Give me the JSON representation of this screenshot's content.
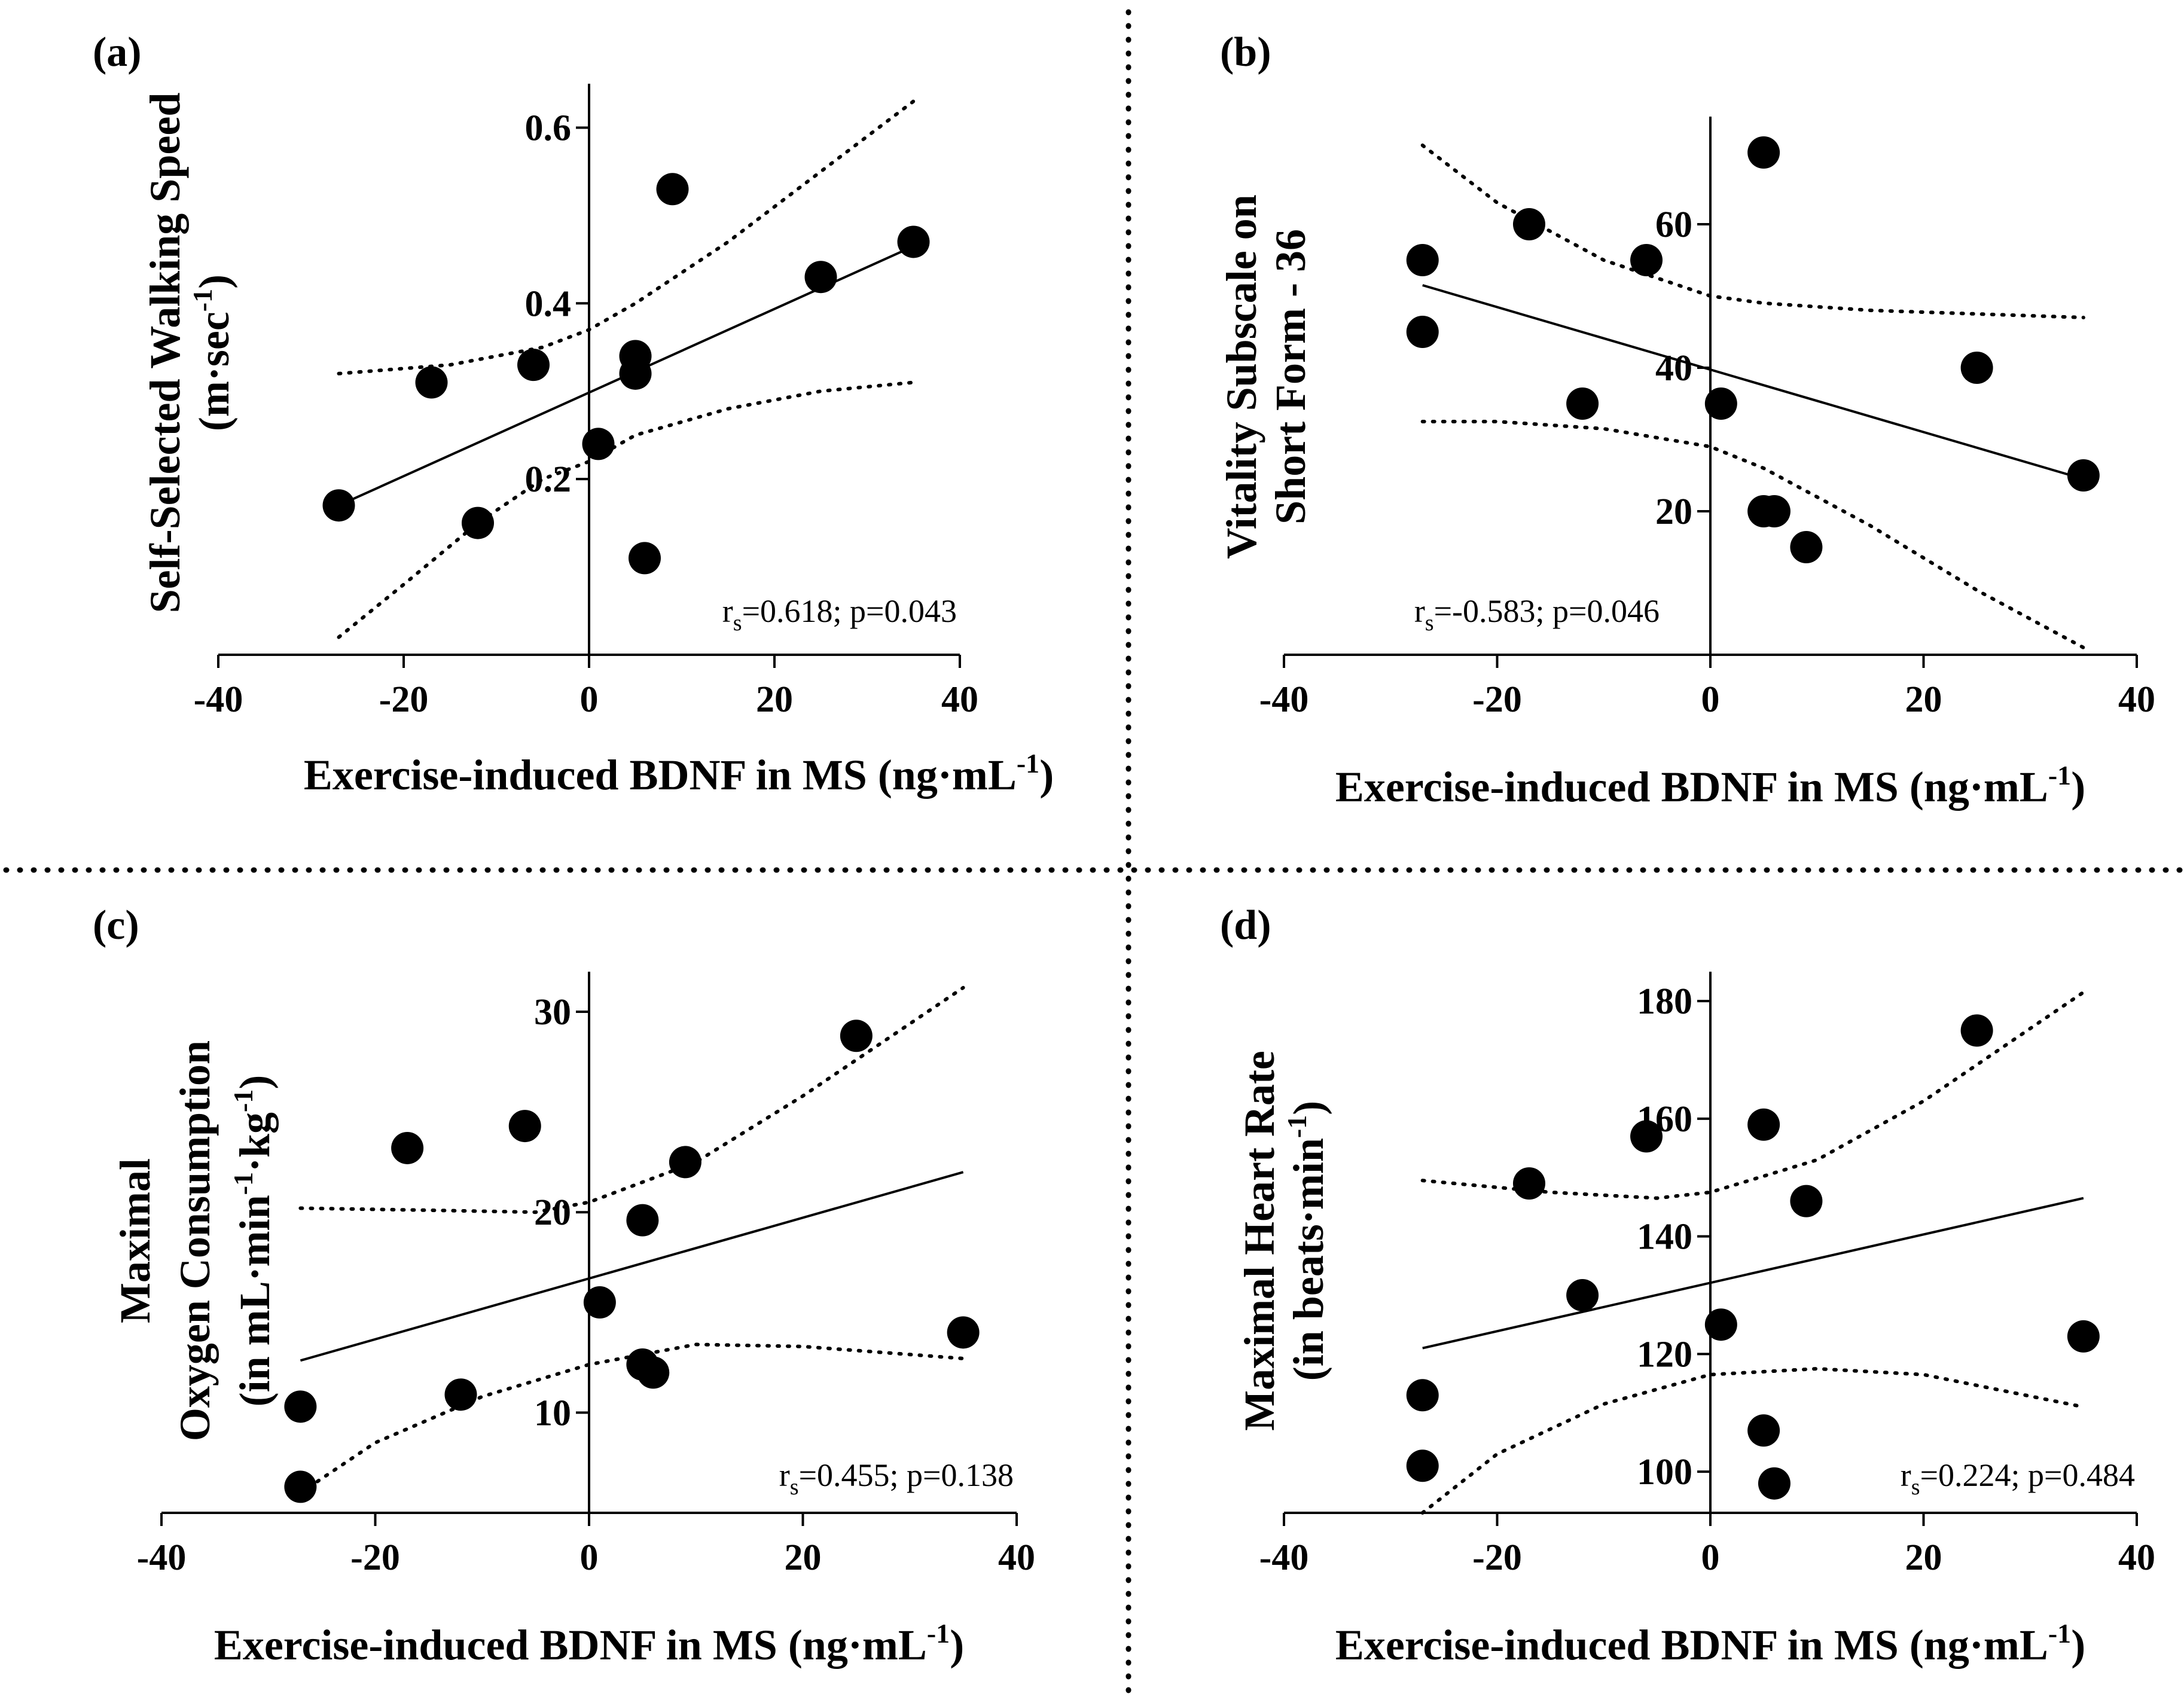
{
  "chart_data": [
    {
      "id": "a",
      "type": "scatter",
      "panel_label": "(a)",
      "title": "",
      "xlabel": "Exercise-induced BDNF in MS (ng·mL",
      "xlabel_sup": "-1",
      "xlabel_end": ")",
      "ylabel_lines": [
        "Self-Selected Walking Speed",
        "(m·sec",
        ")"
      ],
      "ylabel_sup": "-1",
      "xlim": [
        -40,
        40
      ],
      "ylim": [
        0.0,
        0.65
      ],
      "xticks": [
        -40,
        -20,
        0,
        20,
        40
      ],
      "xtick_labels": [
        "-40",
        "-20",
        "0",
        "20",
        "40"
      ],
      "yticks": [
        0.2,
        0.4,
        0.6
      ],
      "ytick_labels": [
        "0.2",
        "0.4",
        "0.6"
      ],
      "points": [
        {
          "x": -27,
          "y": 0.17
        },
        {
          "x": -17,
          "y": 0.31
        },
        {
          "x": -12,
          "y": 0.15
        },
        {
          "x": -6,
          "y": 0.33
        },
        {
          "x": 1,
          "y": 0.24
        },
        {
          "x": 5,
          "y": 0.34
        },
        {
          "x": 5,
          "y": 0.32
        },
        {
          "x": 6,
          "y": 0.11
        },
        {
          "x": 9,
          "y": 0.53
        },
        {
          "x": 25,
          "y": 0.43
        },
        {
          "x": 35,
          "y": 0.47
        }
      ],
      "fit_line": [
        [
          -27,
          0.17
        ],
        [
          35,
          0.465
        ]
      ],
      "ci_upper": [
        [
          -27,
          0.32
        ],
        [
          -15,
          0.33
        ],
        [
          -5,
          0.35
        ],
        [
          0,
          0.37
        ],
        [
          5,
          0.4
        ],
        [
          15,
          0.47
        ],
        [
          25,
          0.55
        ],
        [
          35,
          0.63
        ]
      ],
      "ci_lower": [
        [
          -27,
          0.02
        ],
        [
          -20,
          0.08
        ],
        [
          -12,
          0.15
        ],
        [
          -5,
          0.2
        ],
        [
          0,
          0.22
        ],
        [
          5,
          0.25
        ],
        [
          15,
          0.28
        ],
        [
          25,
          0.3
        ],
        [
          35,
          0.31
        ]
      ],
      "stat_prefix": "r",
      "stat_sub": "s",
      "stat_rest": "=0.618; p=0.043"
    },
    {
      "id": "b",
      "type": "scatter",
      "panel_label": "(b)",
      "title": "",
      "xlabel": "Exercise-induced BDNF in MS (ng·mL",
      "xlabel_sup": "-1",
      "xlabel_end": ")",
      "ylabel_lines": [
        "Vitality Subscale on",
        "Short Form - 36"
      ],
      "ylabel_sup": "",
      "xlim": [
        -40,
        40
      ],
      "ylim": [
        0,
        75
      ],
      "xticks": [
        -40,
        -20,
        0,
        20,
        40
      ],
      "xtick_labels": [
        "-40",
        "-20",
        "0",
        "20",
        "40"
      ],
      "yticks": [
        20,
        40,
        60
      ],
      "ytick_labels": [
        "20",
        "40",
        "60"
      ],
      "points": [
        {
          "x": -27,
          "y": 55
        },
        {
          "x": -27,
          "y": 45
        },
        {
          "x": -17,
          "y": 60
        },
        {
          "x": -12,
          "y": 35
        },
        {
          "x": -6,
          "y": 55
        },
        {
          "x": 1,
          "y": 35
        },
        {
          "x": 5,
          "y": 70
        },
        {
          "x": 5,
          "y": 20
        },
        {
          "x": 6,
          "y": 20
        },
        {
          "x": 9,
          "y": 15
        },
        {
          "x": 25,
          "y": 40
        },
        {
          "x": 35,
          "y": 25
        }
      ],
      "fit_line": [
        [
          -27,
          51.5
        ],
        [
          35,
          24.5
        ]
      ],
      "ci_upper": [
        [
          -27,
          71
        ],
        [
          -20,
          63
        ],
        [
          -10,
          55
        ],
        [
          0,
          50
        ],
        [
          5,
          49
        ],
        [
          15,
          48
        ],
        [
          25,
          47.5
        ],
        [
          35,
          47
        ]
      ],
      "ci_lower": [
        [
          -27,
          32.5
        ],
        [
          -20,
          32.5
        ],
        [
          -10,
          31.5
        ],
        [
          0,
          29
        ],
        [
          5,
          26
        ],
        [
          15,
          18
        ],
        [
          25,
          9
        ],
        [
          35,
          1
        ]
      ],
      "stat_prefix": "r",
      "stat_sub": "s",
      "stat_rest": "=-0.583; p=0.046"
    },
    {
      "id": "c",
      "type": "scatter",
      "panel_label": "(c)",
      "title": "",
      "xlabel": "Exercise-induced BDNF in MS (ng·mL",
      "xlabel_sup": "-1",
      "xlabel_end": ")",
      "ylabel_lines": [
        "Maximal",
        "Oxygen Consumption",
        "(in mL·min",
        "·kg",
        ")"
      ],
      "ylabel_sup": "-1",
      "xlim": [
        -40,
        40
      ],
      "ylim": [
        5,
        32
      ],
      "xticks": [
        -40,
        -20,
        0,
        20,
        40
      ],
      "xtick_labels": [
        "-40",
        "-20",
        "0",
        "20",
        "40"
      ],
      "yticks": [
        10,
        20,
        30
      ],
      "ytick_labels": [
        "10",
        "20",
        "30"
      ],
      "points": [
        {
          "x": -27,
          "y": 10.3
        },
        {
          "x": -27,
          "y": 6.3
        },
        {
          "x": -17,
          "y": 23.2
        },
        {
          "x": -12,
          "y": 10.9
        },
        {
          "x": -6,
          "y": 24.3
        },
        {
          "x": 1,
          "y": 15.5
        },
        {
          "x": 5,
          "y": 19.6
        },
        {
          "x": 5,
          "y": 12.4
        },
        {
          "x": 6,
          "y": 12.0
        },
        {
          "x": 9,
          "y": 22.5
        },
        {
          "x": 25,
          "y": 28.8
        },
        {
          "x": 35,
          "y": 14.0
        }
      ],
      "fit_line": [
        [
          -27,
          12.6
        ],
        [
          35,
          22.0
        ]
      ],
      "ci_upper": [
        [
          -27,
          20.2
        ],
        [
          -15,
          20.1
        ],
        [
          -5,
          20.0
        ],
        [
          0,
          20.5
        ],
        [
          10,
          22.5
        ],
        [
          20,
          25.8
        ],
        [
          35,
          31.2
        ]
      ],
      "ci_lower": [
        [
          -27,
          6.0
        ],
        [
          -20,
          8.5
        ],
        [
          -10,
          10.8
        ],
        [
          0,
          12.4
        ],
        [
          10,
          13.4
        ],
        [
          20,
          13.3
        ],
        [
          35,
          12.7
        ]
      ],
      "stat_prefix": "r",
      "stat_sub": "s",
      "stat_rest": "=0.455; p=0.138"
    },
    {
      "id": "d",
      "type": "scatter",
      "panel_label": "(d)",
      "title": "",
      "xlabel": "Exercise-induced BDNF in MS (ng·mL",
      "xlabel_sup": "-1",
      "xlabel_end": ")",
      "ylabel_lines": [
        "Maximal Heart Rate",
        "(in beats·min",
        ")"
      ],
      "ylabel_sup": "-1",
      "xlim": [
        -40,
        40
      ],
      "ylim": [
        93,
        185
      ],
      "xticks": [
        -40,
        -20,
        0,
        20,
        40
      ],
      "xtick_labels": [
        "-40",
        "-20",
        "0",
        "20",
        "40"
      ],
      "yticks": [
        100,
        120,
        140,
        160,
        180
      ],
      "ytick_labels": [
        "100",
        "120",
        "140",
        "160",
        "180"
      ],
      "points": [
        {
          "x": -27,
          "y": 113
        },
        {
          "x": -27,
          "y": 101
        },
        {
          "x": -17,
          "y": 149
        },
        {
          "x": -12,
          "y": 130
        },
        {
          "x": -6,
          "y": 157
        },
        {
          "x": 1,
          "y": 125
        },
        {
          "x": 5,
          "y": 159
        },
        {
          "x": 5,
          "y": 107
        },
        {
          "x": 6,
          "y": 98
        },
        {
          "x": 9,
          "y": 146
        },
        {
          "x": 25,
          "y": 175
        },
        {
          "x": 35,
          "y": 123
        }
      ],
      "fit_line": [
        [
          -27,
          121
        ],
        [
          35,
          146.5
        ]
      ],
      "ci_upper": [
        [
          -27,
          149.5
        ],
        [
          -15,
          147.5
        ],
        [
          -5,
          146.5
        ],
        [
          0,
          147.5
        ],
        [
          10,
          153
        ],
        [
          20,
          163
        ],
        [
          35,
          181.5
        ]
      ],
      "ci_lower": [
        [
          -27,
          93
        ],
        [
          -20,
          103
        ],
        [
          -10,
          111.5
        ],
        [
          0,
          116.5
        ],
        [
          10,
          117.5
        ],
        [
          20,
          116.5
        ],
        [
          35,
          111
        ]
      ],
      "stat_prefix": "r",
      "stat_sub": "s",
      "stat_rest": "=0.224; p=0.484"
    }
  ]
}
